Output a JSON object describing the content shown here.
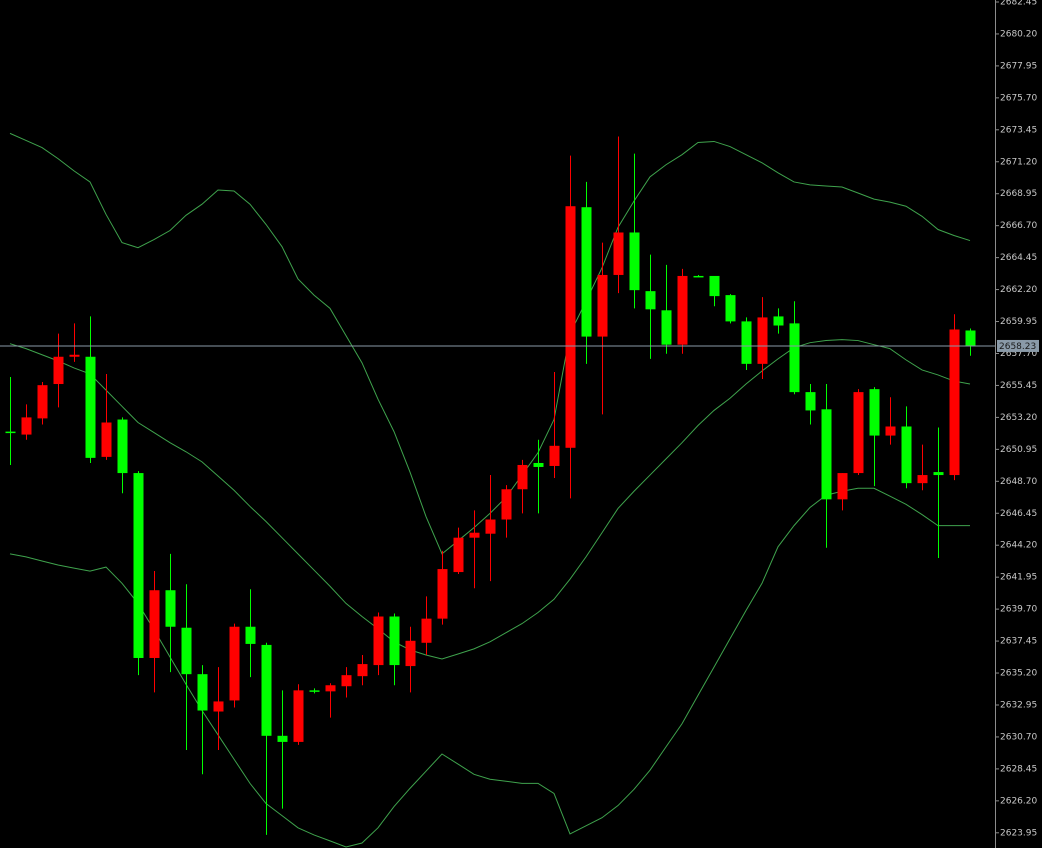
{
  "chart_data": {
    "type": "candlestick",
    "open": [
      2652.2,
      2651.99,
      2653.13,
      2655.55,
      2657.47,
      2657.47,
      2650.42,
      2653.05,
      2649.28,
      2636.26,
      2641.03,
      2638.39,
      2635.12,
      2632.49,
      2633.27,
      2638.46,
      2637.18,
      2630.78,
      2630.35,
      2633.98,
      2633.91,
      2634.27,
      2634.98,
      2635.76,
      2639.18,
      2635.69,
      2637.33,
      2639.03,
      2642.31,
      2644.73,
      2645.01,
      2646.01,
      2648.14,
      2649.99,
      2649.78,
      2651.06,
      2668.0,
      2658.89,
      2663.23,
      2666.22,
      2662.09,
      2660.74,
      2658.32,
      2663.16,
      2663.16,
      2661.81,
      2659.96,
      2656.97,
      2660.31,
      2659.82,
      2654.98,
      2653.77,
      2647.43,
      2649.28,
      2655.19,
      2651.92,
      2652.56,
      2648.57,
      2649.35,
      2649.14,
      2659.32
    ],
    "high": [
      2656.04,
      2654.12,
      2655.69,
      2659.1,
      2659.82,
      2660.31,
      2656.26,
      2653.2,
      2649.42,
      2642.38,
      2643.59,
      2641.45,
      2635.76,
      2635.62,
      2638.68,
      2641.1,
      2637.33,
      2633.98,
      2634.41,
      2634.12,
      2634.48,
      2635.62,
      2636.47,
      2639.46,
      2639.39,
      2638.46,
      2640.6,
      2643.8,
      2645.44,
      2646.65,
      2649.14,
      2648.43,
      2650.21,
      2651.63,
      2656.4,
      2671.63,
      2669.78,
      2665.51,
      2672.98,
      2671.77,
      2664.66,
      2663.94,
      2663.66,
      2663.23,
      2663.16,
      2661.88,
      2660.24,
      2661.67,
      2660.88,
      2661.38,
      2655.55,
      2655.55,
      2649.28,
      2655.19,
      2655.33,
      2654.62,
      2653.98,
      2651.28,
      2652.49,
      2660.46,
      2659.46
    ],
    "low": [
      2649.85,
      2651.63,
      2652.7,
      2653.91,
      2657.11,
      2649.99,
      2650.21,
      2647.86,
      2635.05,
      2633.84,
      2635.26,
      2629.78,
      2628.07,
      2629.78,
      2632.77,
      2634.91,
      2623.8,
      2625.65,
      2630.14,
      2633.77,
      2632.06,
      2633.48,
      2634.34,
      2635.05,
      2634.34,
      2633.84,
      2636.47,
      2638.61,
      2642.17,
      2641.17,
      2641.67,
      2644.73,
      2646.44,
      2646.44,
      2648.93,
      2647.5,
      2656.97,
      2653.41,
      2661.95,
      2660.88,
      2657.32,
      2657.68,
      2657.68,
      2663.09,
      2661.03,
      2659.82,
      2656.54,
      2655.9,
      2659.1,
      2654.83,
      2652.7,
      2644.02,
      2646.65,
      2649.14,
      2648.36,
      2651.28,
      2648.21,
      2648.07,
      2643.3,
      2648.78,
      2657.54
    ],
    "close": [
      2652.2,
      2653.2,
      2655.47,
      2657.47,
      2657.61,
      2650.35,
      2652.84,
      2649.28,
      2636.26,
      2641.03,
      2638.46,
      2635.12,
      2632.56,
      2633.2,
      2638.46,
      2637.25,
      2630.78,
      2630.35,
      2633.98,
      2633.98,
      2634.34,
      2635.05,
      2635.83,
      2639.18,
      2635.76,
      2637.47,
      2639.03,
      2642.52,
      2644.73,
      2645.08,
      2646.01,
      2648.14,
      2649.85,
      2649.71,
      2651.2,
      2668.07,
      2658.89,
      2663.23,
      2666.22,
      2662.16,
      2660.81,
      2658.32,
      2663.16,
      2663.16,
      2661.74,
      2659.96,
      2656.97,
      2660.24,
      2659.67,
      2654.98,
      2653.69,
      2647.43,
      2649.28,
      2654.98,
      2651.92,
      2652.56,
      2648.57,
      2649.14,
      2649.14,
      2659.39,
      2658.23
    ],
    "up_color": "#ff0000",
    "down_color": "#00ff00",
    "bands": [
      {
        "color": "#3fa34d",
        "values": [
          2673.2,
          2672.7,
          2672.2,
          2671.42,
          2670.56,
          2669.78,
          2667.5,
          2665.51,
          2665.15,
          2665.72,
          2666.36,
          2667.43,
          2668.21,
          2669.21,
          2669.14,
          2668.21,
          2666.79,
          2665.22,
          2662.95,
          2661.81,
          2660.88,
          2658.96,
          2657.04,
          2654.48,
          2652.2,
          2649.35,
          2646.22,
          2643.59,
          2644.51,
          2645.44,
          2646.44,
          2647.57,
          2649.14,
          2650.71,
          2653.05,
          2659.1,
          2661.38,
          2663.73,
          2666.58,
          2668.43,
          2670.14,
          2670.99,
          2671.7,
          2672.56,
          2672.63,
          2672.27,
          2671.7,
          2671.13,
          2670.42,
          2669.78,
          2669.57,
          2669.49,
          2669.42,
          2669.0,
          2668.57,
          2668.36,
          2668.07,
          2667.36,
          2666.43,
          2666.01,
          2665.65
        ]
      },
      {
        "color": "#3fa34d",
        "values": [
          2658.39,
          2658.04,
          2657.61,
          2657.18,
          2656.68,
          2656.26,
          2655.12,
          2653.98,
          2652.84,
          2652.13,
          2651.42,
          2650.78,
          2650.07,
          2649.07,
          2648.07,
          2646.93,
          2645.87,
          2644.73,
          2643.59,
          2642.45,
          2641.31,
          2640.1,
          2639.18,
          2638.32,
          2637.4,
          2636.83,
          2636.47,
          2636.19,
          2636.54,
          2636.9,
          2637.4,
          2638.04,
          2638.68,
          2639.46,
          2640.39,
          2641.81,
          2643.38,
          2645.08,
          2646.79,
          2648.0,
          2649.14,
          2650.28,
          2651.42,
          2652.63,
          2653.69,
          2654.55,
          2655.55,
          2656.47,
          2657.32,
          2658.11,
          2658.46,
          2658.61,
          2658.68,
          2658.61,
          2658.32,
          2658.04,
          2657.25,
          2656.54,
          2656.19,
          2655.76,
          2655.55
        ]
      },
      {
        "color": "#3fa34d",
        "values": [
          2643.59,
          2643.38,
          2643.09,
          2642.81,
          2642.59,
          2642.38,
          2642.66,
          2641.52,
          2640.1,
          2638.25,
          2636.33,
          2634.41,
          2632.56,
          2630.85,
          2629.14,
          2627.43,
          2626.01,
          2625.16,
          2624.3,
          2623.8,
          2623.38,
          2622.95,
          2623.23,
          2624.3,
          2625.8,
          2627.08,
          2628.29,
          2629.5,
          2628.79,
          2628.07,
          2627.72,
          2627.58,
          2627.43,
          2627.43,
          2626.72,
          2623.87,
          2624.44,
          2625.01,
          2625.87,
          2627.01,
          2628.36,
          2630.0,
          2631.63,
          2633.63,
          2635.62,
          2637.61,
          2639.6,
          2641.52,
          2644.09,
          2645.58,
          2646.86,
          2647.72,
          2648.0,
          2648.21,
          2648.21,
          2647.65,
          2647.08,
          2646.36,
          2645.58,
          2645.58,
          2645.58
        ]
      }
    ],
    "last_price": 2658.23,
    "last_price_color": "#8a9aa8",
    "ylim": [
      2622.88,
      2682.59
    ],
    "yticks": [
      2682.45,
      {
        "value": 2680.2,
        "label": "2680.20"
      },
      2677.95,
      {
        "value": 2675.7,
        "label": "2675.70"
      },
      2673.45,
      {
        "value": 2671.2,
        "label": "2671.20"
      },
      2668.95,
      {
        "value": 2666.7,
        "label": "2666.70"
      },
      2664.45,
      {
        "value": 2662.2,
        "label": "2662.20"
      },
      2659.95,
      {
        "value": 2657.7,
        "label": "2657.70"
      },
      2655.45,
      {
        "value": 2653.2,
        "label": "2653.20"
      },
      2650.95,
      {
        "value": 2648.7,
        "label": "2648.70"
      },
      2646.45,
      {
        "value": 2644.2,
        "label": "2644.20"
      },
      2641.95,
      {
        "value": 2639.7,
        "label": "2639.70"
      },
      2637.45,
      {
        "value": 2635.2,
        "label": "2635.20"
      },
      2632.95,
      {
        "value": 2630.7,
        "label": "2630.70"
      },
      2628.45,
      {
        "value": 2626.2,
        "label": "2626.20"
      },
      2623.95
    ]
  }
}
